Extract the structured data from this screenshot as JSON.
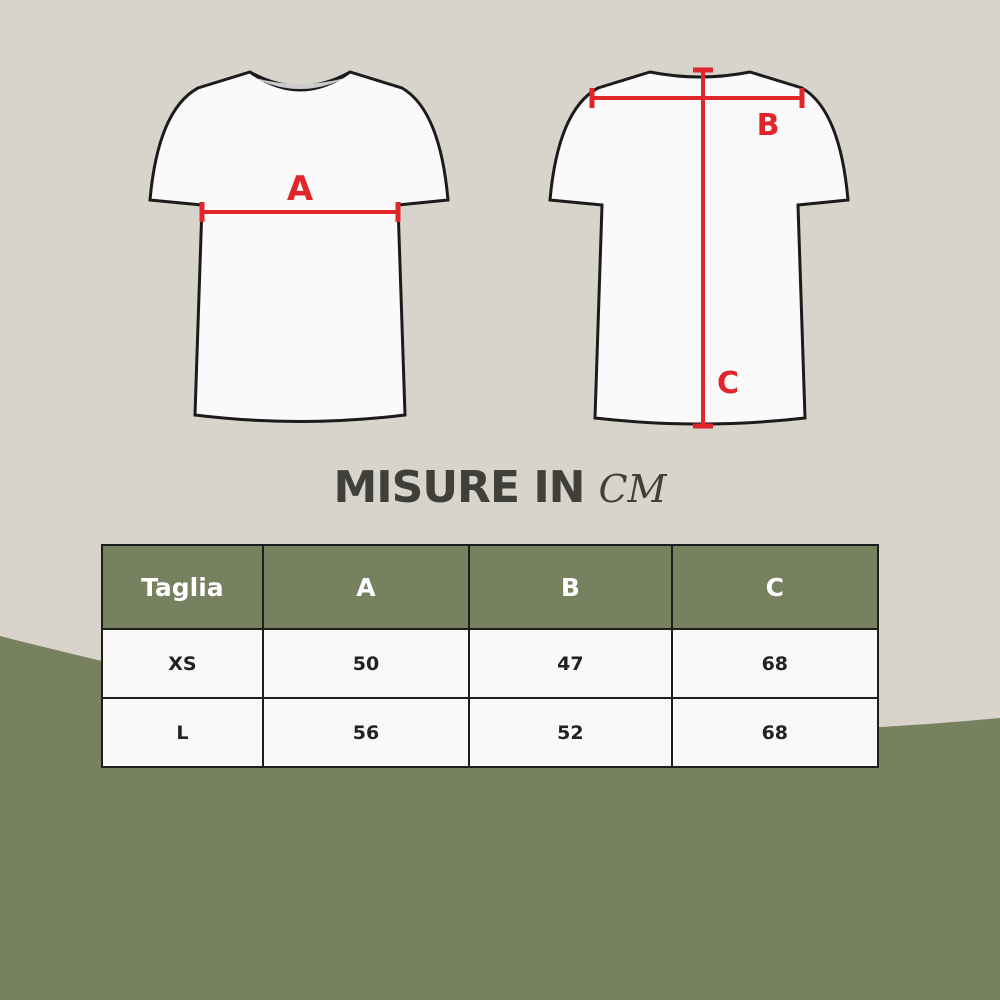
{
  "colors": {
    "background": "#d9d4cb",
    "accent_green": "#77805f",
    "measure_red": "#e0262b",
    "title_text": "#3f403a"
  },
  "diagram": {
    "front_label": "A",
    "back_labels": [
      "B",
      "C"
    ]
  },
  "title": {
    "main": "MISURE IN",
    "unit": "CM"
  },
  "table": {
    "headers": [
      "Taglia",
      "A",
      "B",
      "C"
    ],
    "rows": [
      [
        "XS",
        "50",
        "47",
        "68"
      ],
      [
        "L",
        "56",
        "52",
        "68"
      ]
    ]
  }
}
